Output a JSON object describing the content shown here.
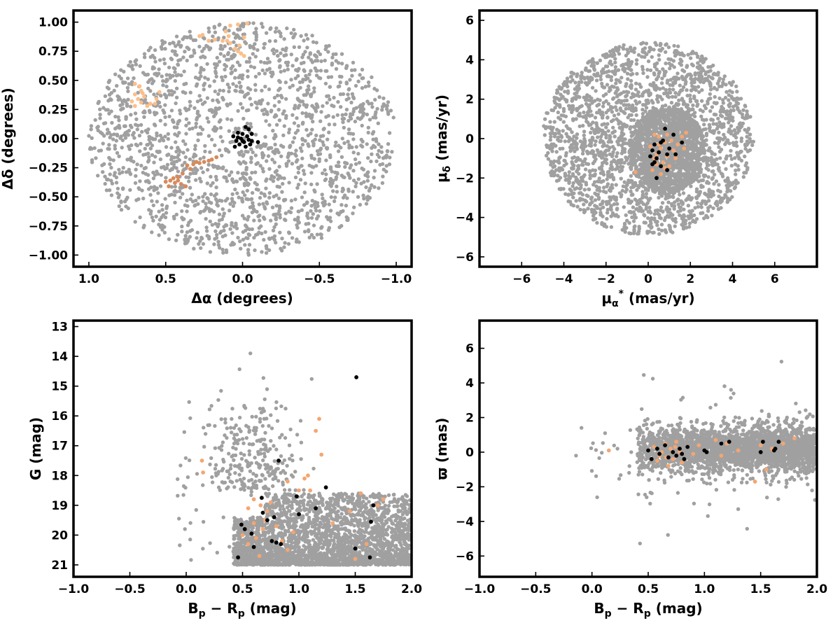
{
  "colors": {
    "field": "#a0a0a0",
    "cluster_core": "#000000",
    "group_light": "#fcbf8a",
    "group_mid": "#f4a672",
    "group_dark": "#d98a5a"
  },
  "chart_data": [
    {
      "id": "sky",
      "type": "scatter",
      "xlabel": "Δα (degrees)",
      "ylabel": "Δδ (degrees)",
      "xlim": [
        1.1,
        -1.1
      ],
      "ylim": [
        -1.1,
        1.1
      ],
      "xticks": [
        1.0,
        0.5,
        0.0,
        -0.5,
        -1.0
      ],
      "xtick_labels": [
        "1.0",
        "0.5",
        "0.0",
        "−0.5",
        "−1.0"
      ],
      "yticks": [
        -1.0,
        -0.75,
        -0.5,
        -0.25,
        0.0,
        0.25,
        0.5,
        0.75,
        1.0
      ],
      "ytick_labels": [
        "−1.00",
        "−0.75",
        "−0.50",
        "−0.25",
        "0.00",
        "0.25",
        "0.50",
        "0.75",
        "1.00"
      ],
      "grid": false,
      "field_distribution": {
        "shape": "disk",
        "radius_x": 1.0,
        "radius_y": 1.0,
        "count": 1900
      },
      "series": [
        {
          "color_key": "group_light",
          "points": [
            [
              0.08,
              0.97
            ],
            [
              0.03,
              0.98
            ],
            [
              -0.03,
              0.99
            ],
            [
              0.11,
              0.92
            ],
            [
              0.09,
              0.88
            ],
            [
              -0.01,
              0.87
            ],
            [
              0.1,
              0.84
            ],
            [
              0.13,
              0.84
            ],
            [
              0.08,
              0.82
            ],
            [
              0.18,
              0.85
            ],
            [
              0.22,
              0.84
            ],
            [
              0.26,
              0.89
            ],
            [
              0.28,
              0.88
            ],
            [
              0.03,
              0.75
            ],
            [
              0.01,
              0.73
            ],
            [
              -0.01,
              0.71
            ],
            [
              0.05,
              0.77
            ],
            [
              0.02,
              0.8
            ]
          ]
        },
        {
          "color_key": "group_light",
          "points": [
            [
              0.7,
              0.47
            ],
            [
              0.67,
              0.45
            ],
            [
              0.66,
              0.41
            ],
            [
              0.7,
              0.38
            ],
            [
              0.64,
              0.36
            ],
            [
              0.68,
              0.34
            ],
            [
              0.72,
              0.32
            ],
            [
              0.66,
              0.31
            ],
            [
              0.6,
              0.3
            ],
            [
              0.57,
              0.3
            ],
            [
              0.62,
              0.28
            ],
            [
              0.7,
              0.28
            ],
            [
              0.65,
              0.39
            ],
            [
              0.56,
              0.34
            ],
            [
              0.54,
              0.4
            ]
          ]
        },
        {
          "color_key": "group_dark",
          "points": [
            [
              0.17,
              -0.16
            ],
            [
              0.22,
              -0.19
            ],
            [
              0.25,
              -0.2
            ],
            [
              0.28,
              -0.21
            ],
            [
              0.32,
              -0.22
            ],
            [
              0.36,
              -0.23
            ],
            [
              0.34,
              -0.26
            ],
            [
              0.39,
              -0.3
            ],
            [
              0.42,
              -0.33
            ],
            [
              0.45,
              -0.34
            ],
            [
              0.47,
              -0.36
            ],
            [
              0.5,
              -0.37
            ],
            [
              0.44,
              -0.38
            ],
            [
              0.4,
              -0.39
            ],
            [
              0.37,
              -0.41
            ],
            [
              0.48,
              -0.41
            ],
            [
              0.42,
              -0.36
            ],
            [
              0.3,
              -0.2
            ],
            [
              0.2,
              -0.18
            ]
          ]
        },
        {
          "color_key": "cluster_core",
          "points": [
            [
              0.03,
              0.05
            ],
            [
              0.0,
              0.04
            ],
            [
              -0.02,
              0.1
            ],
            [
              -0.04,
              0.08
            ],
            [
              -0.03,
              0.02
            ],
            [
              0.01,
              0.0
            ],
            [
              0.04,
              -0.02
            ],
            [
              -0.01,
              -0.03
            ],
            [
              -0.04,
              -0.01
            ],
            [
              -0.06,
              -0.02
            ],
            [
              -0.02,
              -0.07
            ],
            [
              0.02,
              -0.05
            ],
            [
              0.05,
              -0.07
            ],
            [
              -0.05,
              -0.05
            ],
            [
              -0.1,
              -0.03
            ],
            [
              0.03,
              0.01
            ],
            [
              -0.06,
              0.04
            ],
            [
              0.0,
              -0.02
            ],
            [
              0.06,
              0.02
            ]
          ]
        }
      ]
    },
    {
      "id": "proper-motion",
      "type": "scatter",
      "xlabel": "μα* (mas/yr)",
      "ylabel": "μδ (mas/yr)",
      "xlim": [
        -8,
        8
      ],
      "ylim": [
        -6.5,
        6.5
      ],
      "xticks": [
        -6,
        -4,
        -2,
        0,
        2,
        4,
        6
      ],
      "xtick_labels": [
        "−6",
        "−4",
        "−2",
        "0",
        "2",
        "4",
        "6"
      ],
      "yticks": [
        -6,
        -4,
        -2,
        0,
        2,
        4,
        6
      ],
      "ytick_labels": [
        "−6",
        "−4",
        "−2",
        "0",
        "2",
        "4",
        "6"
      ],
      "grid": false,
      "field_distribution": {
        "shape": "disk",
        "center": [
          0.0,
          0.0
        ],
        "radius_x": 5.0,
        "radius_y": 4.9,
        "count": 2200,
        "dense_core": {
          "center": [
            0.9,
            -0.6
          ],
          "radius_x": 1.8,
          "radius_y": 2.2,
          "count": 1300
        }
      },
      "series": [
        {
          "color_key": "group_mid",
          "points": [
            [
              0.3,
              0.2
            ],
            [
              0.5,
              0.1
            ],
            [
              0.8,
              -0.2
            ],
            [
              1.1,
              -0.1
            ],
            [
              0.6,
              -0.5
            ],
            [
              0.4,
              -0.8
            ],
            [
              0.9,
              -0.9
            ],
            [
              1.2,
              -0.6
            ],
            [
              0.7,
              -1.2
            ],
            [
              1.0,
              -1.4
            ],
            [
              0.3,
              -1.0
            ],
            [
              0.2,
              -1.6
            ],
            [
              0.6,
              -1.8
            ],
            [
              1.4,
              -0.3
            ],
            [
              1.6,
              0.1
            ],
            [
              1.8,
              0.3
            ],
            [
              0.9,
              0.2
            ],
            [
              0.5,
              -0.3
            ],
            [
              -0.6,
              -1.7
            ],
            [
              0.1,
              -0.4
            ],
            [
              1.3,
              -1.0
            ],
            [
              0.8,
              -1.5
            ],
            [
              1.7,
              -0.5
            ],
            [
              0.4,
              -1.3
            ]
          ]
        },
        {
          "color_key": "cluster_core",
          "points": [
            [
              0.8,
              0.5
            ],
            [
              0.3,
              -0.3
            ],
            [
              0.6,
              -0.2
            ],
            [
              0.7,
              -0.1
            ],
            [
              1.0,
              -0.5
            ],
            [
              1.2,
              0.2
            ],
            [
              0.2,
              -0.6
            ],
            [
              0.5,
              -0.7
            ],
            [
              0.4,
              -1.0
            ],
            [
              0.9,
              -0.8
            ],
            [
              1.3,
              -0.8
            ],
            [
              0.1,
              -0.9
            ],
            [
              0.3,
              -1.2
            ],
            [
              0.6,
              -1.4
            ],
            [
              0.2,
              -1.3
            ],
            [
              0.9,
              -1.6
            ],
            [
              0.4,
              -2.0
            ],
            [
              1.6,
              -0.2
            ]
          ]
        }
      ]
    },
    {
      "id": "cmd",
      "type": "scatter",
      "xlabel": "Bp − Rp (mag)",
      "ylabel": "G (mag)",
      "xlim": [
        -1.0,
        2.0
      ],
      "ylim": [
        21.4,
        12.8
      ],
      "xticks": [
        -1.0,
        -0.5,
        0.0,
        0.5,
        1.0,
        1.5,
        2.0
      ],
      "xtick_labels": [
        "−1.0",
        "−0.5",
        "0.0",
        "0.5",
        "1.0",
        "1.5",
        "2.0"
      ],
      "yticks": [
        13,
        14,
        15,
        16,
        17,
        18,
        19,
        20,
        21
      ],
      "ytick_labels": [
        "13",
        "14",
        "15",
        "16",
        "17",
        "18",
        "19",
        "20",
        "21"
      ],
      "grid": false,
      "field_distribution": {
        "shape": "cmd",
        "count": 2600
      },
      "series": [
        {
          "color_key": "group_mid",
          "points": [
            [
              0.15,
              17.9
            ],
            [
              0.14,
              17.5
            ],
            [
              0.55,
              20.3
            ],
            [
              0.62,
              20.1
            ],
            [
              0.68,
              19.8
            ],
            [
              0.7,
              19.5
            ],
            [
              0.72,
              19.2
            ],
            [
              0.66,
              19.0
            ],
            [
              0.6,
              18.8
            ],
            [
              0.75,
              18.9
            ],
            [
              0.8,
              19.7
            ],
            [
              0.85,
              20.2
            ],
            [
              0.9,
              18.2
            ],
            [
              1.0,
              18.5
            ],
            [
              1.05,
              18.1
            ],
            [
              1.1,
              18.5
            ],
            [
              1.15,
              16.5
            ],
            [
              1.18,
              16.1
            ],
            [
              0.55,
              19.1
            ],
            [
              0.6,
              19.6
            ],
            [
              1.2,
              17.3
            ],
            [
              0.9,
              20.5
            ],
            [
              1.5,
              20.8
            ],
            [
              1.55,
              18.6
            ],
            [
              1.6,
              20.3
            ],
            [
              1.7,
              19.0
            ],
            [
              1.75,
              18.8
            ],
            [
              1.3,
              19.6
            ],
            [
              1.45,
              19.2
            ],
            [
              0.65,
              20.7
            ],
            [
              0.5,
              20.0
            ],
            [
              0.95,
              19.9
            ],
            [
              1.08,
              18.0
            ]
          ]
        },
        {
          "color_key": "cluster_core",
          "points": [
            [
              0.46,
              20.75
            ],
            [
              0.6,
              20.4
            ],
            [
              0.52,
              19.8
            ],
            [
              0.58,
              19.95
            ],
            [
              0.49,
              19.65
            ],
            [
              0.76,
              20.2
            ],
            [
              0.8,
              20.25
            ],
            [
              0.84,
              20.3
            ],
            [
              0.68,
              19.25
            ],
            [
              0.72,
              19.5
            ],
            [
              0.78,
              19.4
            ],
            [
              0.67,
              18.75
            ],
            [
              0.98,
              18.7
            ],
            [
              1.0,
              19.3
            ],
            [
              1.15,
              19.1
            ],
            [
              1.24,
              18.4
            ],
            [
              0.82,
              17.5
            ],
            [
              1.5,
              20.45
            ],
            [
              1.63,
              20.75
            ],
            [
              1.64,
              19.55
            ],
            [
              1.66,
              19.0
            ],
            [
              1.51,
              14.7
            ]
          ]
        }
      ]
    },
    {
      "id": "parallax",
      "type": "scatter",
      "xlabel": "Bp − Rp (mag)",
      "ylabel": "ϖ (mas)",
      "xlim": [
        -1.0,
        2.0
      ],
      "ylim": [
        -7.2,
        7.6
      ],
      "xticks": [
        -1.0,
        -0.5,
        0.0,
        0.5,
        1.0,
        1.5,
        2.0
      ],
      "xtick_labels": [
        "−1.0",
        "−0.5",
        "0.0",
        "0.5",
        "1.0",
        "1.5",
        "2.0"
      ],
      "yticks": [
        -6,
        -4,
        -2,
        0,
        2,
        4,
        6
      ],
      "ytick_labels": [
        "−6",
        "−4",
        "−2",
        "0",
        "2",
        "4",
        "6"
      ],
      "grid": false,
      "field_distribution": {
        "shape": "parallax",
        "count": 2600
      },
      "series": [
        {
          "color_key": "group_mid",
          "points": [
            [
              0.15,
              0.1
            ],
            [
              0.55,
              0.3
            ],
            [
              0.6,
              -0.2
            ],
            [
              0.65,
              0.5
            ],
            [
              0.7,
              0.2
            ],
            [
              0.72,
              -0.4
            ],
            [
              0.75,
              0.6
            ],
            [
              0.78,
              0.0
            ],
            [
              0.8,
              -0.6
            ],
            [
              0.68,
              -0.8
            ],
            [
              0.62,
              0.0
            ],
            [
              0.85,
              0.3
            ],
            [
              0.9,
              -0.1
            ],
            [
              1.1,
              0.7
            ],
            [
              1.2,
              0.5
            ],
            [
              1.15,
              -0.2
            ],
            [
              1.45,
              -1.7
            ],
            [
              1.5,
              0.4
            ],
            [
              1.55,
              -1.0
            ],
            [
              1.6,
              0.2
            ],
            [
              1.7,
              0.5
            ],
            [
              1.8,
              0.8
            ],
            [
              0.95,
              0.4
            ],
            [
              0.58,
              -0.5
            ],
            [
              1.3,
              0.1
            ],
            [
              0.74,
              0.3
            ],
            [
              0.66,
              -0.3
            ]
          ]
        },
        {
          "color_key": "cluster_core",
          "points": [
            [
              0.5,
              0.1
            ],
            [
              0.53,
              -0.4
            ],
            [
              0.58,
              0.2
            ],
            [
              0.6,
              -0.1
            ],
            [
              0.65,
              0.4
            ],
            [
              0.68,
              -0.3
            ],
            [
              0.72,
              0.0
            ],
            [
              0.75,
              -0.2
            ],
            [
              0.78,
              0.2
            ],
            [
              0.8,
              -0.1
            ],
            [
              0.82,
              -0.4
            ],
            [
              0.85,
              0.3
            ],
            [
              1.0,
              0.1
            ],
            [
              1.02,
              0.0
            ],
            [
              1.15,
              0.5
            ],
            [
              1.22,
              0.6
            ],
            [
              1.5,
              0.0
            ],
            [
              1.52,
              0.6
            ],
            [
              1.63,
              0.2
            ],
            [
              1.66,
              0.6
            ],
            [
              1.62,
              0.1
            ]
          ]
        }
      ]
    }
  ]
}
